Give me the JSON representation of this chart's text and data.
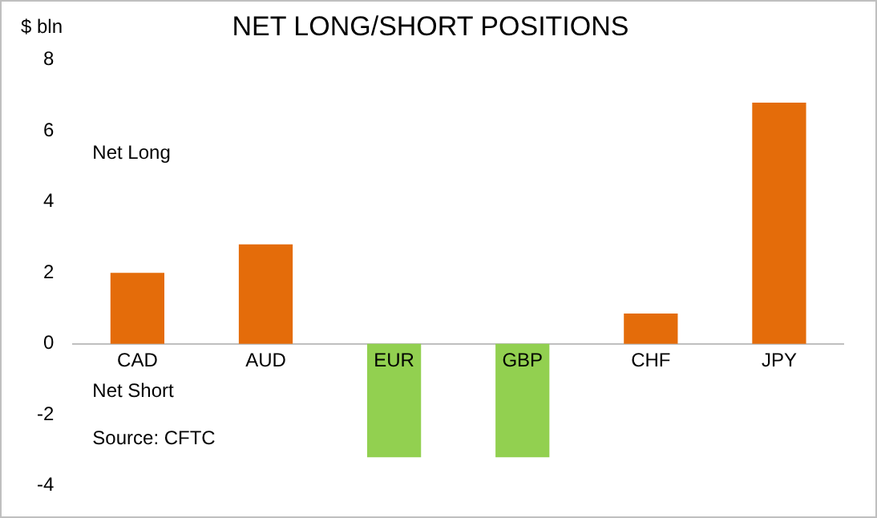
{
  "chart_data": {
    "type": "bar",
    "title": "NET LONG/SHORT POSITIONS",
    "ylabel": "$ bln",
    "categories": [
      "CAD",
      "AUD",
      "EUR",
      "GBP",
      "CHF",
      "JPY"
    ],
    "values": [
      2.0,
      2.8,
      -3.2,
      -3.2,
      0.85,
      6.8
    ],
    "colors": [
      "#e46c0a",
      "#e46c0a",
      "#92d050",
      "#92d050",
      "#e46c0a",
      "#e46c0a"
    ],
    "ylim": [
      -4,
      8
    ],
    "yticks": [
      -4,
      -2,
      0,
      2,
      4,
      6,
      8
    ],
    "grid": false,
    "legend": false,
    "annotations": [
      "Net Long",
      "Net Short",
      "Source: CFTC"
    ]
  }
}
